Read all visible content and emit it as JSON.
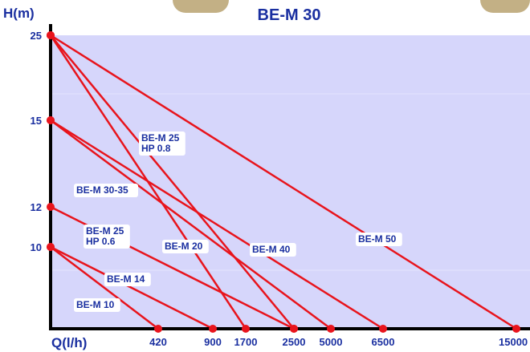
{
  "chart_data": {
    "type": "line",
    "title": "BE-M 30",
    "xlabel": "Q(l/h)",
    "ylabel": "H(m)",
    "x_ticks": [
      "420",
      "900",
      "1700",
      "2500",
      "5000",
      "6500",
      "15000"
    ],
    "y_ticks": [
      "25",
      "15",
      "12",
      "10"
    ],
    "grid": false,
    "series": [
      {
        "name": "BE-M 50",
        "label_lines": [
          "BE-M 50"
        ],
        "points": [
          [
            0,
            "25"
          ],
          [
            "15000",
            0
          ]
        ]
      },
      {
        "name": "BE-M 25 HP 0.8",
        "label_lines": [
          "BE-M 25",
          "HP 0.8"
        ],
        "points": [
          [
            0,
            "25"
          ],
          [
            "2500",
            0
          ]
        ]
      },
      {
        "name": "BE-M 20",
        "label_lines": [
          "BE-M 20"
        ],
        "points": [
          [
            0,
            "25"
          ],
          [
            "1700",
            0
          ]
        ]
      },
      {
        "name": "BE-M 40",
        "label_lines": [
          "BE-M 40"
        ],
        "points": [
          [
            0,
            "15"
          ],
          [
            "6500",
            0
          ]
        ]
      },
      {
        "name": "BE-M 30-35",
        "label_lines": [
          "BE-M 30-35"
        ],
        "points": [
          [
            0,
            "15"
          ],
          [
            "5000",
            0
          ]
        ]
      },
      {
        "name": "BE-M 25 HP 0.6",
        "label_lines": [
          "BE-M 25",
          "HP 0.6"
        ],
        "points": [
          [
            0,
            "12"
          ],
          [
            "2500",
            0
          ]
        ]
      },
      {
        "name": "BE-M 14",
        "label_lines": [
          "BE-M 14"
        ],
        "points": [
          [
            0,
            "10"
          ],
          [
            "900",
            0
          ]
        ]
      },
      {
        "name": "BE-M 10",
        "label_lines": [
          "BE-M 10"
        ],
        "points": [
          [
            0,
            "10"
          ],
          [
            "420",
            0
          ]
        ]
      }
    ],
    "colors": {
      "line": "#e8141c",
      "text": "#1a2fa0",
      "plot_bg": "#d6d6fb",
      "axis": "#000000"
    }
  }
}
